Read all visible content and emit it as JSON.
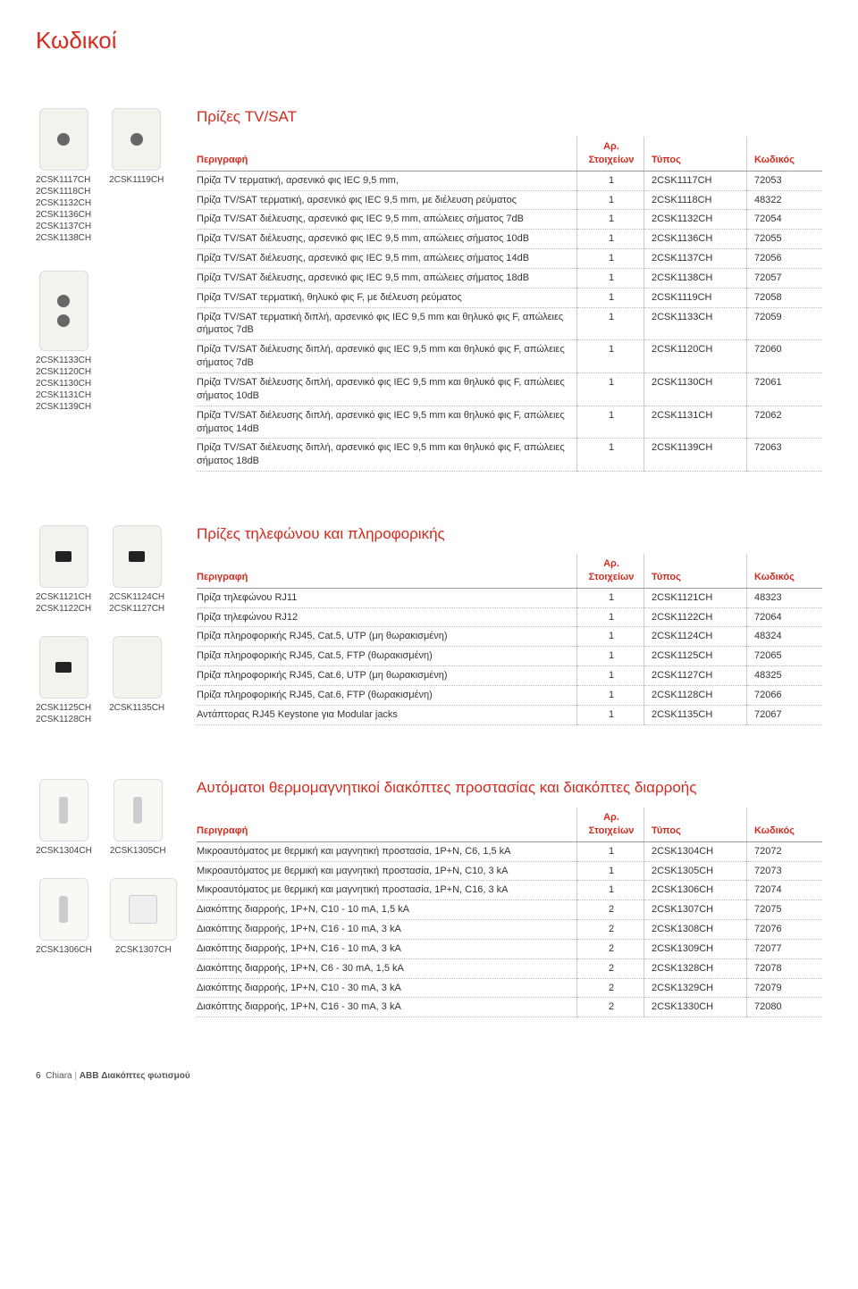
{
  "page_title": "Κωδικοί",
  "col_headers": {
    "desc": "Περιγραφή",
    "elems_top": "Αρ.",
    "elems": "Στοιχείων",
    "type": "Τύπος",
    "code": "Κωδικός"
  },
  "sec1": {
    "title": "Πρίζες TV/SAT",
    "thumbs": {
      "g1_left": [
        "2CSK1117CH",
        "2CSK1118CH",
        "2CSK1132CH",
        "2CSK1136CH",
        "2CSK1137CH",
        "2CSK1138CH"
      ],
      "g1_right": [
        "2CSK1119CH"
      ],
      "g2_left": [
        "2CSK1133CH",
        "2CSK1120CH",
        "2CSK1130CH",
        "2CSK1131CH",
        "2CSK1139CH"
      ]
    },
    "rows": [
      {
        "d": "Πρίζα TV τερματική, αρσενικό φις IEC 9,5 mm,",
        "n": "1",
        "t": "2CSK1117CH",
        "c": "72053"
      },
      {
        "d": "Πρίζα TV/SAT τερματική, αρσενικό φις IEC 9,5 mm, με διέλευση ρεύματος",
        "n": "1",
        "t": "2CSK1118CH",
        "c": "48322"
      },
      {
        "d": "Πρίζα TV/SAT διέλευσης, αρσενικό φις IEC 9,5 mm, απώλειες σήματος 7dB",
        "n": "1",
        "t": "2CSK1132CH",
        "c": "72054"
      },
      {
        "d": "Πρίζα TV/SAT διέλευσης, αρσενικό φις IEC 9,5 mm, απώλειες σήματος 10dB",
        "n": "1",
        "t": "2CSK1136CH",
        "c": "72055"
      },
      {
        "d": "Πρίζα TV/SAT διέλευσης, αρσενικό φις IEC 9,5 mm, απώλειες σήματος 14dB",
        "n": "1",
        "t": "2CSK1137CH",
        "c": "72056"
      },
      {
        "d": "Πρίζα TV/SAT διέλευσης, αρσενικό φις IEC 9,5 mm, απώλειες σήματος 18dB",
        "n": "1",
        "t": "2CSK1138CH",
        "c": "72057"
      },
      {
        "d": "Πρίζα TV/SAT τερματική, θηλυκό φις F, με διέλευση ρεύματος",
        "n": "1",
        "t": "2CSK1119CH",
        "c": "72058"
      },
      {
        "d": "Πρίζα TV/SAT τερματική διπλή, αρσενικό φις IEC 9,5 mm και θηλυκό φις F, απώλειες σήματος 7dB",
        "n": "1",
        "t": "2CSK1133CH",
        "c": "72059"
      },
      {
        "d": "Πρίζα TV/SAT διέλευσης διπλή, αρσενικό φις IEC 9,5 mm και θηλυκό φις F, απώλειες σήματος 7dB",
        "n": "1",
        "t": "2CSK1120CH",
        "c": "72060"
      },
      {
        "d": "Πρίζα TV/SAT διέλευσης διπλή, αρσενικό φις IEC 9,5 mm και θηλυκό φις F, απώλειες σήματος 10dB",
        "n": "1",
        "t": "2CSK1130CH",
        "c": "72061"
      },
      {
        "d": "Πρίζα TV/SAT διέλευσης διπλή, αρσενικό φις IEC 9,5 mm και θηλυκό φις F, απώλειες σήματος 14dB",
        "n": "1",
        "t": "2CSK1131CH",
        "c": "72062"
      },
      {
        "d": "Πρίζα TV/SAT διέλευσης διπλή, αρσενικό φις IEC 9,5 mm και θηλυκό φις F, απώλειες σήματος 18dB",
        "n": "1",
        "t": "2CSK1139CH",
        "c": "72063"
      }
    ]
  },
  "sec2": {
    "title": "Πρίζες τηλεφώνου και πληροφορικής",
    "thumbs": {
      "g1_left": [
        "2CSK1121CH",
        "2CSK1122CH"
      ],
      "g1_right": [
        "2CSK1124CH",
        "2CSK1127CH"
      ],
      "g2_left": [
        "2CSK1125CH",
        "2CSK1128CH"
      ],
      "g2_right": [
        "2CSK1135CH"
      ]
    },
    "rows": [
      {
        "d": "Πρίζα τηλεφώνου RJ11",
        "n": "1",
        "t": "2CSK1121CH",
        "c": "48323"
      },
      {
        "d": "Πρίζα τηλεφώνου RJ12",
        "n": "1",
        "t": "2CSK1122CH",
        "c": "72064"
      },
      {
        "d": "Πρίζα πληροφορικής RJ45, Cat.5, UTP (μη θωρακισμένη)",
        "n": "1",
        "t": "2CSK1124CH",
        "c": "48324"
      },
      {
        "d": "Πρίζα πληροφορικής RJ45, Cat.5, FTP (θωρακισμένη)",
        "n": "1",
        "t": "2CSK1125CH",
        "c": "72065"
      },
      {
        "d": "Πρίζα πληροφορικής RJ45, Cat.6, UTP (μη θωρακισμένη)",
        "n": "1",
        "t": "2CSK1127CH",
        "c": "48325"
      },
      {
        "d": "Πρίζα πληροφορικής RJ45, Cat.6, FTP (θωρακισμένη)",
        "n": "1",
        "t": "2CSK1128CH",
        "c": "72066"
      },
      {
        "d": "Αντάπτορας RJ45 Keystone για Modular jacks",
        "n": "1",
        "t": "2CSK1135CH",
        "c": "72067"
      }
    ]
  },
  "sec3": {
    "title": "Αυτόματοι θερμομαγνητικοί διακόπτες προστασίας και διακόπτες διαρροής",
    "thumbs": {
      "g1_left": [
        "2CSK1304CH"
      ],
      "g1_right": [
        "2CSK1305CH"
      ],
      "g2_left": [
        "2CSK1306CH"
      ],
      "g2_right": [
        "2CSK1307CH"
      ]
    },
    "rows": [
      {
        "d": "Μικροαυτόματος με θερμική και μαγνητική προστασία, 1P+N, C6, 1,5 kA",
        "n": "1",
        "t": "2CSK1304CH",
        "c": "72072"
      },
      {
        "d": "Μικροαυτόματος με θερμική και μαγνητική προστασία, 1P+N, C10, 3 kA",
        "n": "1",
        "t": "2CSK1305CH",
        "c": "72073"
      },
      {
        "d": "Μικροαυτόματος με θερμική και μαγνητική προστασία, 1P+N, C16, 3 kA",
        "n": "1",
        "t": "2CSK1306CH",
        "c": "72074"
      },
      {
        "d": "Διακόπτης διαρροής, 1P+N, C10 - 10 mA, 1,5 kA",
        "n": "2",
        "t": "2CSK1307CH",
        "c": "72075"
      },
      {
        "d": "Διακόπτης διαρροής, 1P+N, C16 - 10 mA, 3 kA",
        "n": "2",
        "t": "2CSK1308CH",
        "c": "72076"
      },
      {
        "d": "Διακόπτης διαρροής, 1P+N, C16 - 10 mA, 3 kA",
        "n": "2",
        "t": "2CSK1309CH",
        "c": "72077"
      },
      {
        "d": "Διακόπτης διαρροής, 1P+N, C6 - 30 mA, 1,5 kA",
        "n": "2",
        "t": "2CSK1328CH",
        "c": "72078"
      },
      {
        "d": "Διακόπτης διαρροής, 1P+N, C10 - 30 mA, 3 kA",
        "n": "2",
        "t": "2CSK1329CH",
        "c": "72079"
      },
      {
        "d": "Διακόπτης διαρροής, 1P+N, C16 - 30 mA, 3 kA",
        "n": "2",
        "t": "2CSK1330CH",
        "c": "72080"
      }
    ]
  },
  "footer": {
    "page_num": "6",
    "series": "Chiara",
    "brand_line": "ABB Διακόπτες φωτισμού"
  }
}
